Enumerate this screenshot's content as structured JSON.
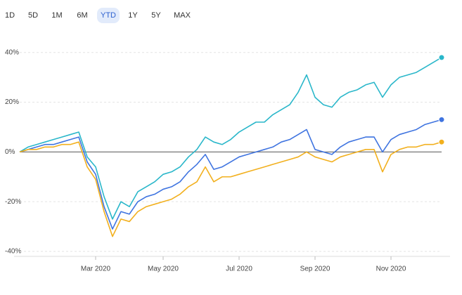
{
  "toolbar": {
    "buttons": [
      "1D",
      "5D",
      "1M",
      "6M",
      "YTD",
      "1Y",
      "5Y",
      "MAX"
    ],
    "active": 4
  },
  "chart_data": {
    "type": "line",
    "categories": [
      null,
      null,
      null,
      null,
      null,
      null,
      null,
      null,
      null,
      "Mar 2020",
      null,
      null,
      null,
      null,
      null,
      null,
      null,
      "May 2020",
      null,
      null,
      null,
      null,
      null,
      null,
      null,
      null,
      "Jul 2020",
      null,
      null,
      null,
      null,
      null,
      null,
      null,
      null,
      "Sep 2020",
      null,
      null,
      null,
      null,
      null,
      null,
      null,
      null,
      "Nov 2020",
      null,
      null,
      null,
      null,
      null,
      null
    ],
    "series": [
      {
        "color": "#2ab7ca",
        "values": [
          0,
          2,
          3,
          4,
          5,
          6,
          7,
          8,
          -2,
          -6,
          -18,
          -27,
          -20,
          -22,
          -16,
          -14,
          -12,
          -9,
          -8,
          -6,
          -2,
          1,
          6,
          4,
          3,
          5,
          8,
          10,
          12,
          12,
          15,
          17,
          19,
          24,
          31,
          22,
          19,
          18,
          22,
          24,
          25,
          27,
          28,
          22,
          27,
          30,
          31,
          32,
          34,
          36,
          38
        ]
      },
      {
        "color": "#3f74e0",
        "values": [
          0,
          1,
          2,
          3,
          3,
          4,
          5,
          6,
          -4,
          -9,
          -22,
          -31,
          -24,
          -25,
          -20,
          -18,
          -17,
          -15,
          -14,
          -12,
          -8,
          -5,
          -1,
          -7,
          -6,
          -4,
          -2,
          -1,
          0,
          1,
          2,
          4,
          5,
          7,
          9,
          1,
          0,
          -1,
          2,
          4,
          5,
          6,
          6,
          0,
          5,
          7,
          8,
          9,
          11,
          12,
          13
        ]
      },
      {
        "color": "#f2b01e",
        "values": [
          0,
          1,
          1,
          2,
          2,
          3,
          3,
          4,
          -6,
          -11,
          -24,
          -34,
          -27,
          -28,
          -24,
          -22,
          -21,
          -20,
          -19,
          -17,
          -14,
          -12,
          -6,
          -12,
          -10,
          -10,
          -9,
          -8,
          -7,
          -6,
          -5,
          -4,
          -3,
          -2,
          0,
          -2,
          -3,
          -4,
          -2,
          -1,
          0,
          1,
          1,
          -8,
          -1,
          1,
          2,
          2,
          3,
          3,
          4
        ]
      }
    ],
    "ylim": [
      -42,
      47
    ],
    "yticks": [
      {
        "value": 40,
        "label": "40%"
      },
      {
        "value": 20,
        "label": "20%"
      },
      {
        "value": 0,
        "label": "0%"
      },
      {
        "value": -20,
        "label": "-20%"
      },
      {
        "value": -40,
        "label": "-40%"
      }
    ],
    "grid": true
  }
}
